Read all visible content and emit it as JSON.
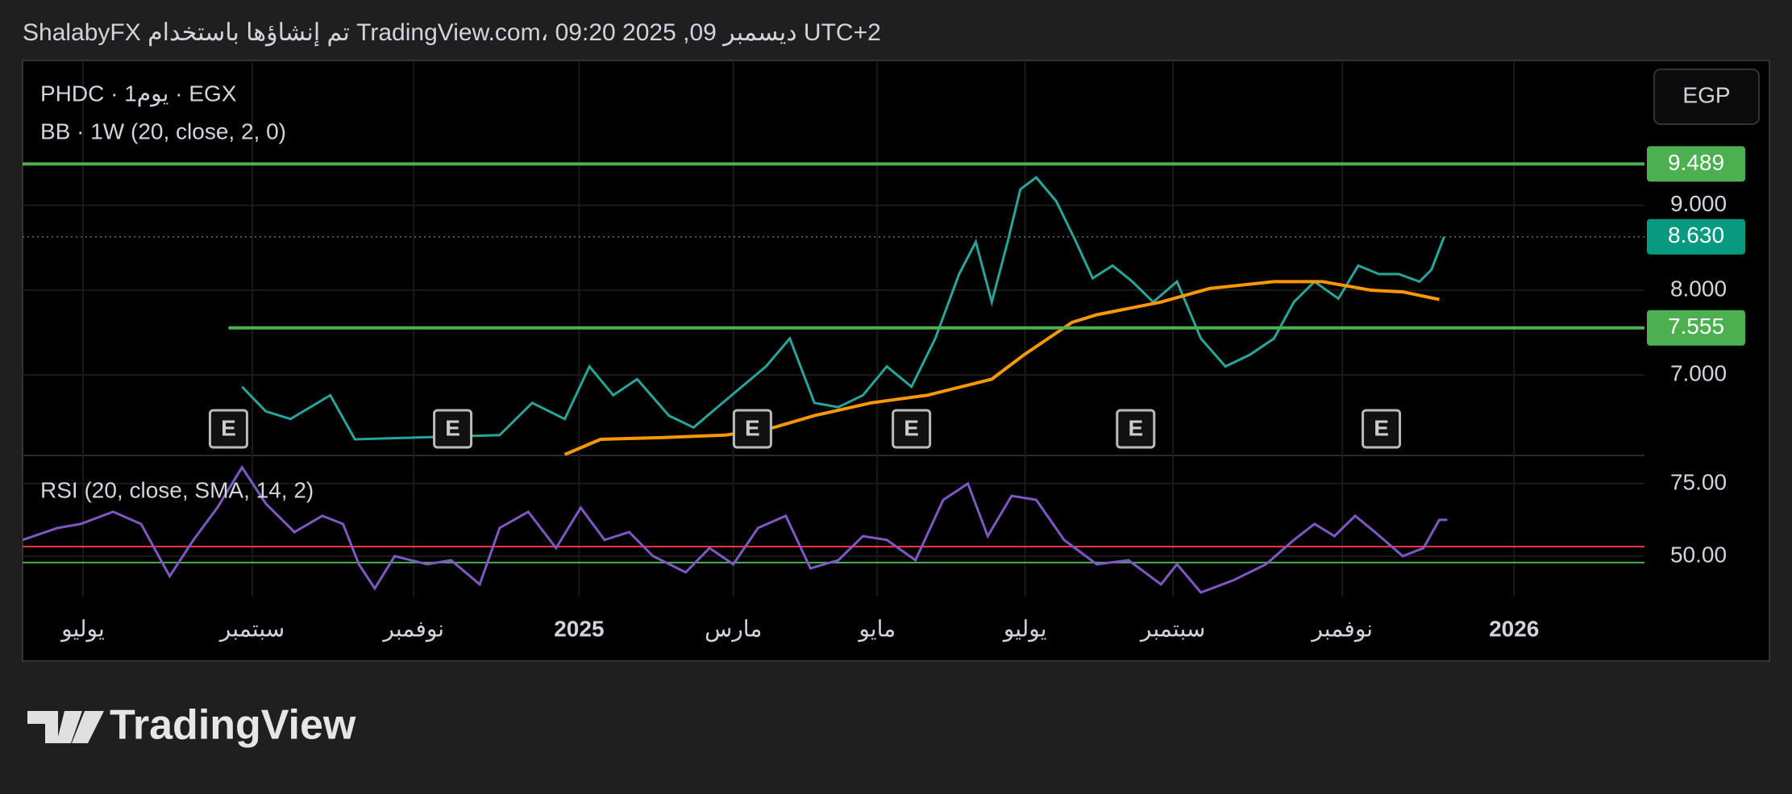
{
  "chart_data": {
    "type": "line",
    "title": "ShalabyFX تم إنشاؤها باستخدام TradingView.com، 09:20 2025 ,09 ديسمبر UTC+2",
    "currency": "EGP",
    "brand": "TradingView",
    "xlim": [
      -0.76,
      19.64
    ],
    "xticks": [
      {
        "value": 0,
        "label": "يوليو"
      },
      {
        "value": 2.13,
        "label": "سبتمبر"
      },
      {
        "value": 4.16,
        "label": "نوفمبر"
      },
      {
        "value": 6.24,
        "label": "2025"
      },
      {
        "value": 8.18,
        "label": "مارس"
      },
      {
        "value": 9.99,
        "label": "مايو"
      },
      {
        "value": 11.85,
        "label": "يوليو"
      },
      {
        "value": 13.71,
        "label": "سبتمبر"
      },
      {
        "value": 15.84,
        "label": "نوفمبر"
      },
      {
        "value": 18,
        "label": "2026"
      }
    ],
    "price": {
      "ylim": [
        6.05,
        10.71
      ],
      "yticks": [
        {
          "value": 7,
          "label": "7.000"
        },
        {
          "value": 8,
          "label": "8.000"
        },
        {
          "value": 9,
          "label": "9.000"
        }
      ],
      "series": [
        {
          "name": "PHDC · 1يوم · EGX",
          "color": "#26a69a",
          "x": [
            2.0,
            2.3,
            2.61,
            3.11,
            3.42,
            5.24,
            5.65,
            6.06,
            6.37,
            6.67,
            6.97,
            7.37,
            7.68,
            7.98,
            8.59,
            8.89,
            9.2,
            9.5,
            9.81,
            10.11,
            10.42,
            10.72,
            11.02,
            11.23,
            11.43,
            11.63,
            11.79,
            11.99,
            12.24,
            12.49,
            12.7,
            12.95,
            13.2,
            13.46,
            13.76,
            14.06,
            14.37,
            14.68,
            14.98,
            15.23,
            15.49,
            15.79,
            16.04,
            16.3,
            16.55,
            16.81,
            16.96,
            17.12
          ],
          "values": [
            6.86,
            6.57,
            6.48,
            6.76,
            6.24,
            6.29,
            6.67,
            6.48,
            7.1,
            6.76,
            6.95,
            6.52,
            6.38,
            6.62,
            7.1,
            7.43,
            6.67,
            6.62,
            6.76,
            7.1,
            6.86,
            7.43,
            8.19,
            8.57,
            7.86,
            8.57,
            9.19,
            9.33,
            9.05,
            8.57,
            8.14,
            8.29,
            8.1,
            7.86,
            8.1,
            7.43,
            7.1,
            7.24,
            7.43,
            7.86,
            8.1,
            7.9,
            8.29,
            8.19,
            8.19,
            8.1,
            8.24,
            8.63
          ]
        },
        {
          "name": "BB · 1W (20, close, 2, 0)",
          "color": "#ff9800",
          "x": [
            6.06,
            6.51,
            7.27,
            8.08,
            8.69,
            9.2,
            9.91,
            10.62,
            11.43,
            11.84,
            12.44,
            12.75,
            13.56,
            14.17,
            14.98,
            15.59,
            16.2,
            16.6,
            17.06
          ],
          "values": [
            6.06,
            6.24,
            6.26,
            6.29,
            6.38,
            6.52,
            6.67,
            6.76,
            6.95,
            7.24,
            7.62,
            7.71,
            7.86,
            8.02,
            8.1,
            8.1,
            8.0,
            7.98,
            7.89
          ]
        }
      ],
      "levels": [
        {
          "value": 9.489,
          "label": "9.489",
          "color": "#4caf50",
          "from": -0.76
        },
        {
          "value": 8.63,
          "label": "8.630",
          "color": "#089981",
          "dotted": true,
          "from": -0.76
        },
        {
          "value": 7.555,
          "label": "7.555",
          "color": "#4caf50",
          "from": 1.83
        }
      ],
      "events": [
        {
          "x": 1.83,
          "label": "E"
        },
        {
          "x": 4.65,
          "label": "E"
        },
        {
          "x": 8.42,
          "label": "E"
        },
        {
          "x": 10.42,
          "label": "E"
        },
        {
          "x": 13.24,
          "label": "E"
        },
        {
          "x": 16.33,
          "label": "E"
        }
      ]
    },
    "rsi": {
      "ylim": [
        36.1,
        84.7
      ],
      "yticks": [
        {
          "value": 50,
          "label": "50.00"
        },
        {
          "value": 75,
          "label": "75.00"
        }
      ],
      "levels": [
        {
          "value": 53.3,
          "color": "#f23645"
        },
        {
          "value": 47.8,
          "color": "#4caf50"
        }
      ],
      "series": [
        {
          "name": "RSI (20, close, SMA, 14, 2)",
          "color": "#7e57c2",
          "x": [
            -0.76,
            -0.32,
            -0.03,
            0.38,
            0.73,
            1.09,
            1.39,
            1.69,
            2.0,
            2.3,
            2.66,
            3.01,
            3.27,
            3.47,
            3.67,
            3.92,
            4.33,
            4.63,
            4.99,
            5.24,
            5.6,
            5.95,
            6.26,
            6.56,
            6.87,
            7.17,
            7.58,
            7.88,
            8.18,
            8.49,
            8.84,
            9.15,
            9.5,
            9.81,
            10.11,
            10.47,
            10.82,
            11.13,
            11.38,
            11.68,
            11.99,
            12.34,
            12.75,
            13.15,
            13.56,
            13.76,
            14.06,
            14.47,
            14.88,
            15.23,
            15.49,
            15.74,
            16.0,
            16.25,
            16.6,
            16.86,
            17.06,
            17.16
          ],
          "values": [
            55.6,
            59.7,
            61.1,
            65.3,
            61.1,
            43.1,
            55.6,
            66.7,
            80.6,
            68.1,
            58.3,
            63.9,
            61.1,
            47.2,
            38.9,
            50.0,
            47.2,
            48.6,
            40.3,
            59.7,
            65.3,
            52.8,
            66.7,
            55.6,
            58.3,
            50.0,
            44.4,
            52.8,
            47.2,
            59.7,
            63.9,
            45.8,
            48.6,
            56.9,
            55.6,
            48.6,
            69.4,
            75.0,
            56.9,
            70.8,
            69.4,
            55.6,
            47.2,
            48.6,
            40.3,
            47.2,
            37.5,
            41.7,
            47.2,
            55.6,
            61.1,
            56.9,
            63.9,
            58.3,
            50.0,
            52.8,
            62.5,
            62.5
          ]
        }
      ]
    }
  }
}
